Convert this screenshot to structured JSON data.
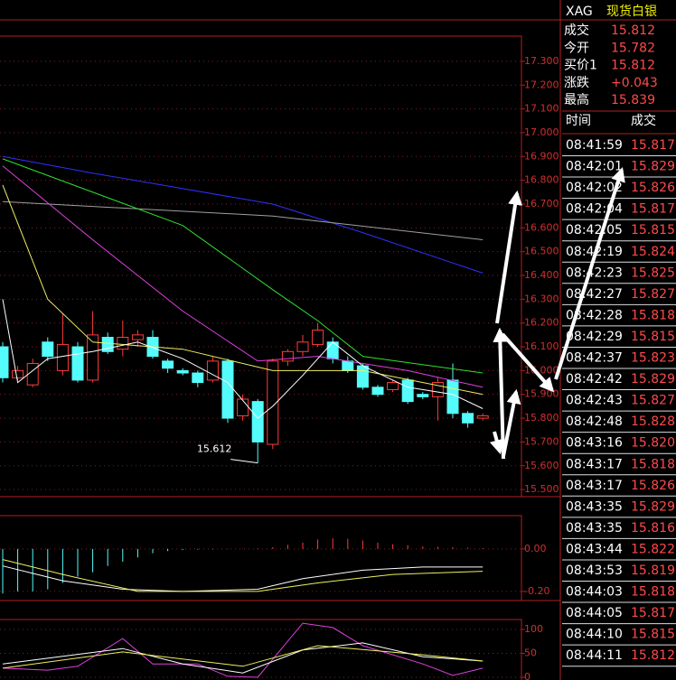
{
  "quote": {
    "symbol": "XAG",
    "name": "现货白银",
    "rows": [
      {
        "label": "成交",
        "value": "15.812"
      },
      {
        "label": "今开",
        "value": "15.782"
      },
      {
        "label": "买价1",
        "value": "15.812"
      },
      {
        "label": "涨跌",
        "value": "+0.043"
      },
      {
        "label": "最高",
        "value": "15.839"
      }
    ]
  },
  "trades": {
    "headers": [
      "时间",
      "成交"
    ],
    "rows": [
      [
        "08:41:59",
        "15.817"
      ],
      [
        "08:42:01",
        "15.829"
      ],
      [
        "08:42:02",
        "15.826"
      ],
      [
        "08:42:04",
        "15.817"
      ],
      [
        "08:42:05",
        "15.815"
      ],
      [
        "08:42:19",
        "15.824"
      ],
      [
        "08:42:23",
        "15.825"
      ],
      [
        "08:42:27",
        "15.827"
      ],
      [
        "08:42:28",
        "15.818"
      ],
      [
        "08:42:29",
        "15.815"
      ],
      [
        "08:42:37",
        "15.823"
      ],
      [
        "08:42:42",
        "15.829"
      ],
      [
        "08:42:43",
        "15.827"
      ],
      [
        "08:42:48",
        "15.828"
      ],
      [
        "08:43:16",
        "15.820"
      ],
      [
        "08:43:17",
        "15.818"
      ],
      [
        "08:43:17",
        "15.826"
      ],
      [
        "08:43:35",
        "15.829"
      ],
      [
        "08:43:35",
        "15.816"
      ],
      [
        "08:43:44",
        "15.822"
      ],
      [
        "08:43:53",
        "15.819"
      ],
      [
        "08:44:03",
        "15.818"
      ],
      [
        "08:44:05",
        "15.817"
      ],
      [
        "08:44:10",
        "15.815"
      ],
      [
        "08:44:11",
        "15.812"
      ]
    ]
  },
  "chart_data": [
    {
      "type": "candlestick",
      "ylim": [
        15.47,
        17.406
      ],
      "grid": true,
      "up_color": "#ff3c3c",
      "down_color": "#54fcfc",
      "yticks": [
        {
          "value": 17.3,
          "label": "17.300"
        },
        {
          "value": 17.2,
          "label": "17.200"
        },
        {
          "value": 17.1,
          "label": "17.100"
        },
        {
          "value": 17.0,
          "label": "17.000"
        },
        {
          "value": 16.9,
          "label": "16.900"
        },
        {
          "value": 16.8,
          "label": "16.800"
        },
        {
          "value": 16.7,
          "label": "16.700"
        },
        {
          "value": 16.6,
          "label": "16.600"
        },
        {
          "value": 16.5,
          "label": "16.500"
        },
        {
          "value": 16.4,
          "label": "16.400"
        },
        {
          "value": 16.3,
          "label": "16.300"
        },
        {
          "value": 16.2,
          "label": "16.200"
        },
        {
          "value": 16.1,
          "label": "16.100"
        },
        {
          "value": 16.0,
          "label": "16.000"
        },
        {
          "value": 15.9,
          "label": "15.900"
        },
        {
          "value": 15.8,
          "label": "15.800"
        },
        {
          "value": 15.7,
          "label": "15.700"
        },
        {
          "value": 15.6,
          "label": "15.600"
        },
        {
          "value": 15.5,
          "label": "15.500"
        }
      ],
      "open": [
        16.1,
        15.97,
        15.94,
        16.12,
        16.0,
        16.1,
        15.96,
        16.14,
        16.09,
        16.13,
        16.14,
        16.04,
        16.0,
        15.99,
        15.96,
        16.04,
        15.81,
        15.87,
        15.69,
        16.04,
        16.08,
        16.11,
        16.12,
        16.04,
        16.02,
        15.93,
        15.92,
        15.96,
        15.9,
        15.89,
        15.96,
        15.82,
        15.8
      ],
      "high": [
        16.12,
        16.02,
        16.05,
        16.14,
        16.24,
        16.12,
        16.25,
        16.16,
        16.21,
        16.17,
        16.17,
        16.05,
        16.01,
        16.0,
        16.06,
        16.05,
        15.9,
        15.88,
        16.05,
        16.09,
        16.15,
        16.2,
        16.14,
        16.06,
        16.03,
        15.94,
        15.96,
        15.97,
        15.91,
        15.97,
        16.03,
        15.83,
        15.82
      ],
      "low": [
        15.95,
        15.96,
        15.93,
        16.04,
        15.98,
        15.95,
        15.95,
        16.07,
        16.06,
        16.1,
        16.05,
        15.99,
        15.98,
        15.93,
        15.95,
        15.78,
        15.79,
        15.612,
        15.67,
        16.02,
        16.06,
        16.1,
        16.03,
        15.99,
        15.92,
        15.89,
        15.91,
        15.86,
        15.88,
        15.79,
        15.8,
        15.76,
        15.79
      ],
      "close": [
        15.97,
        16.0,
        16.03,
        16.06,
        16.11,
        15.96,
        16.15,
        16.08,
        16.14,
        16.15,
        16.06,
        16.01,
        15.99,
        15.95,
        16.04,
        15.8,
        15.88,
        15.7,
        16.04,
        16.08,
        16.12,
        16.17,
        16.05,
        16.0,
        15.93,
        15.9,
        15.95,
        15.87,
        15.89,
        15.95,
        15.82,
        15.78,
        15.81
      ],
      "series": [
        {
          "color": "#3030ff",
          "x": [
            0,
            6,
            18,
            24,
            32
          ],
          "values": [
            16.9,
            16.83,
            16.7,
            16.58,
            16.41
          ]
        },
        {
          "color": "#a0a0a0",
          "x": [
            0,
            18,
            32
          ],
          "values": [
            16.71,
            16.65,
            16.55
          ]
        },
        {
          "color": "#30e030",
          "x": [
            0,
            12,
            18,
            21,
            24,
            32
          ],
          "values": [
            16.89,
            16.61,
            16.34,
            16.21,
            16.06,
            15.99
          ]
        },
        {
          "color": "#e040e0",
          "x": [
            0,
            6,
            12,
            17,
            21,
            27,
            32
          ],
          "values": [
            16.86,
            16.55,
            16.25,
            16.04,
            16.06,
            16.0,
            15.93
          ]
        },
        {
          "color": "#f0f060",
          "x": [
            0,
            3,
            6,
            12,
            18,
            24,
            32
          ],
          "values": [
            16.78,
            16.3,
            16.12,
            16.09,
            16.0,
            16.0,
            15.9
          ]
        },
        {
          "color": "#ffffff",
          "x": [
            0,
            1,
            3,
            6,
            9,
            12,
            15,
            17,
            18,
            20,
            22,
            24,
            27,
            30,
            32
          ],
          "values": [
            16.3,
            15.95,
            16.05,
            16.08,
            16.12,
            16.05,
            15.95,
            15.8,
            15.85,
            15.98,
            16.12,
            16.02,
            15.93,
            15.9,
            15.84
          ]
        }
      ]
    },
    {
      "type": "macd",
      "ylim": [
        -0.243,
        0.157
      ],
      "grid": true,
      "up_color": "#ff3c3c",
      "down_color": "#54fcfc",
      "yticks": [
        {
          "value": 0,
          "label": "0.00"
        },
        {
          "value": -0.2,
          "label": "-0.20"
        }
      ],
      "values": [
        -0.21,
        -0.2,
        -0.2,
        -0.19,
        -0.16,
        -0.13,
        -0.11,
        -0.08,
        -0.06,
        -0.04,
        -0.02,
        -0.01,
        -0.005,
        -0.003,
        -0.002,
        -0.001,
        0.001,
        0.003,
        0.008,
        0.02,
        0.03,
        0.045,
        0.05,
        0.048,
        0.04,
        0.03,
        0.022,
        0.018,
        0.012,
        0.01,
        0.008,
        0.006,
        0.004
      ],
      "series": [
        {
          "color": "#ffffff",
          "x": [
            0,
            4,
            8,
            12,
            17,
            20,
            24,
            28,
            32
          ],
          "values": [
            -0.08,
            -0.15,
            -0.19,
            -0.2,
            -0.19,
            -0.14,
            -0.1,
            -0.085,
            -0.085
          ]
        },
        {
          "color": "#f0f060",
          "x": [
            0,
            4,
            9,
            12,
            17,
            21,
            26,
            32
          ],
          "values": [
            -0.05,
            -0.12,
            -0.2,
            -0.2,
            -0.2,
            -0.16,
            -0.12,
            -0.105
          ]
        }
      ]
    },
    {
      "type": "kdj",
      "ylim": [
        0,
        120.8
      ],
      "grid": true,
      "yticks": [
        100,
        50,
        0
      ],
      "series": [
        {
          "color": "#e040e0",
          "x": [
            0,
            3,
            5,
            8,
            10,
            13,
            15,
            17,
            20,
            22,
            24,
            28,
            30,
            32
          ],
          "values": [
            19,
            15,
            23,
            81,
            28,
            28,
            2,
            0,
            113,
            104,
            66,
            28,
            4,
            19
          ]
        },
        {
          "color": "#ffffff",
          "x": [
            0,
            8,
            12,
            16,
            20,
            24,
            28,
            32
          ],
          "values": [
            28,
            60,
            28,
            9,
            57,
            72,
            43,
            34
          ]
        },
        {
          "color": "#f0f060",
          "x": [
            0,
            8,
            16,
            21,
            28,
            32
          ],
          "values": [
            19,
            53,
            23,
            66,
            47,
            34
          ]
        }
      ]
    }
  ]
}
